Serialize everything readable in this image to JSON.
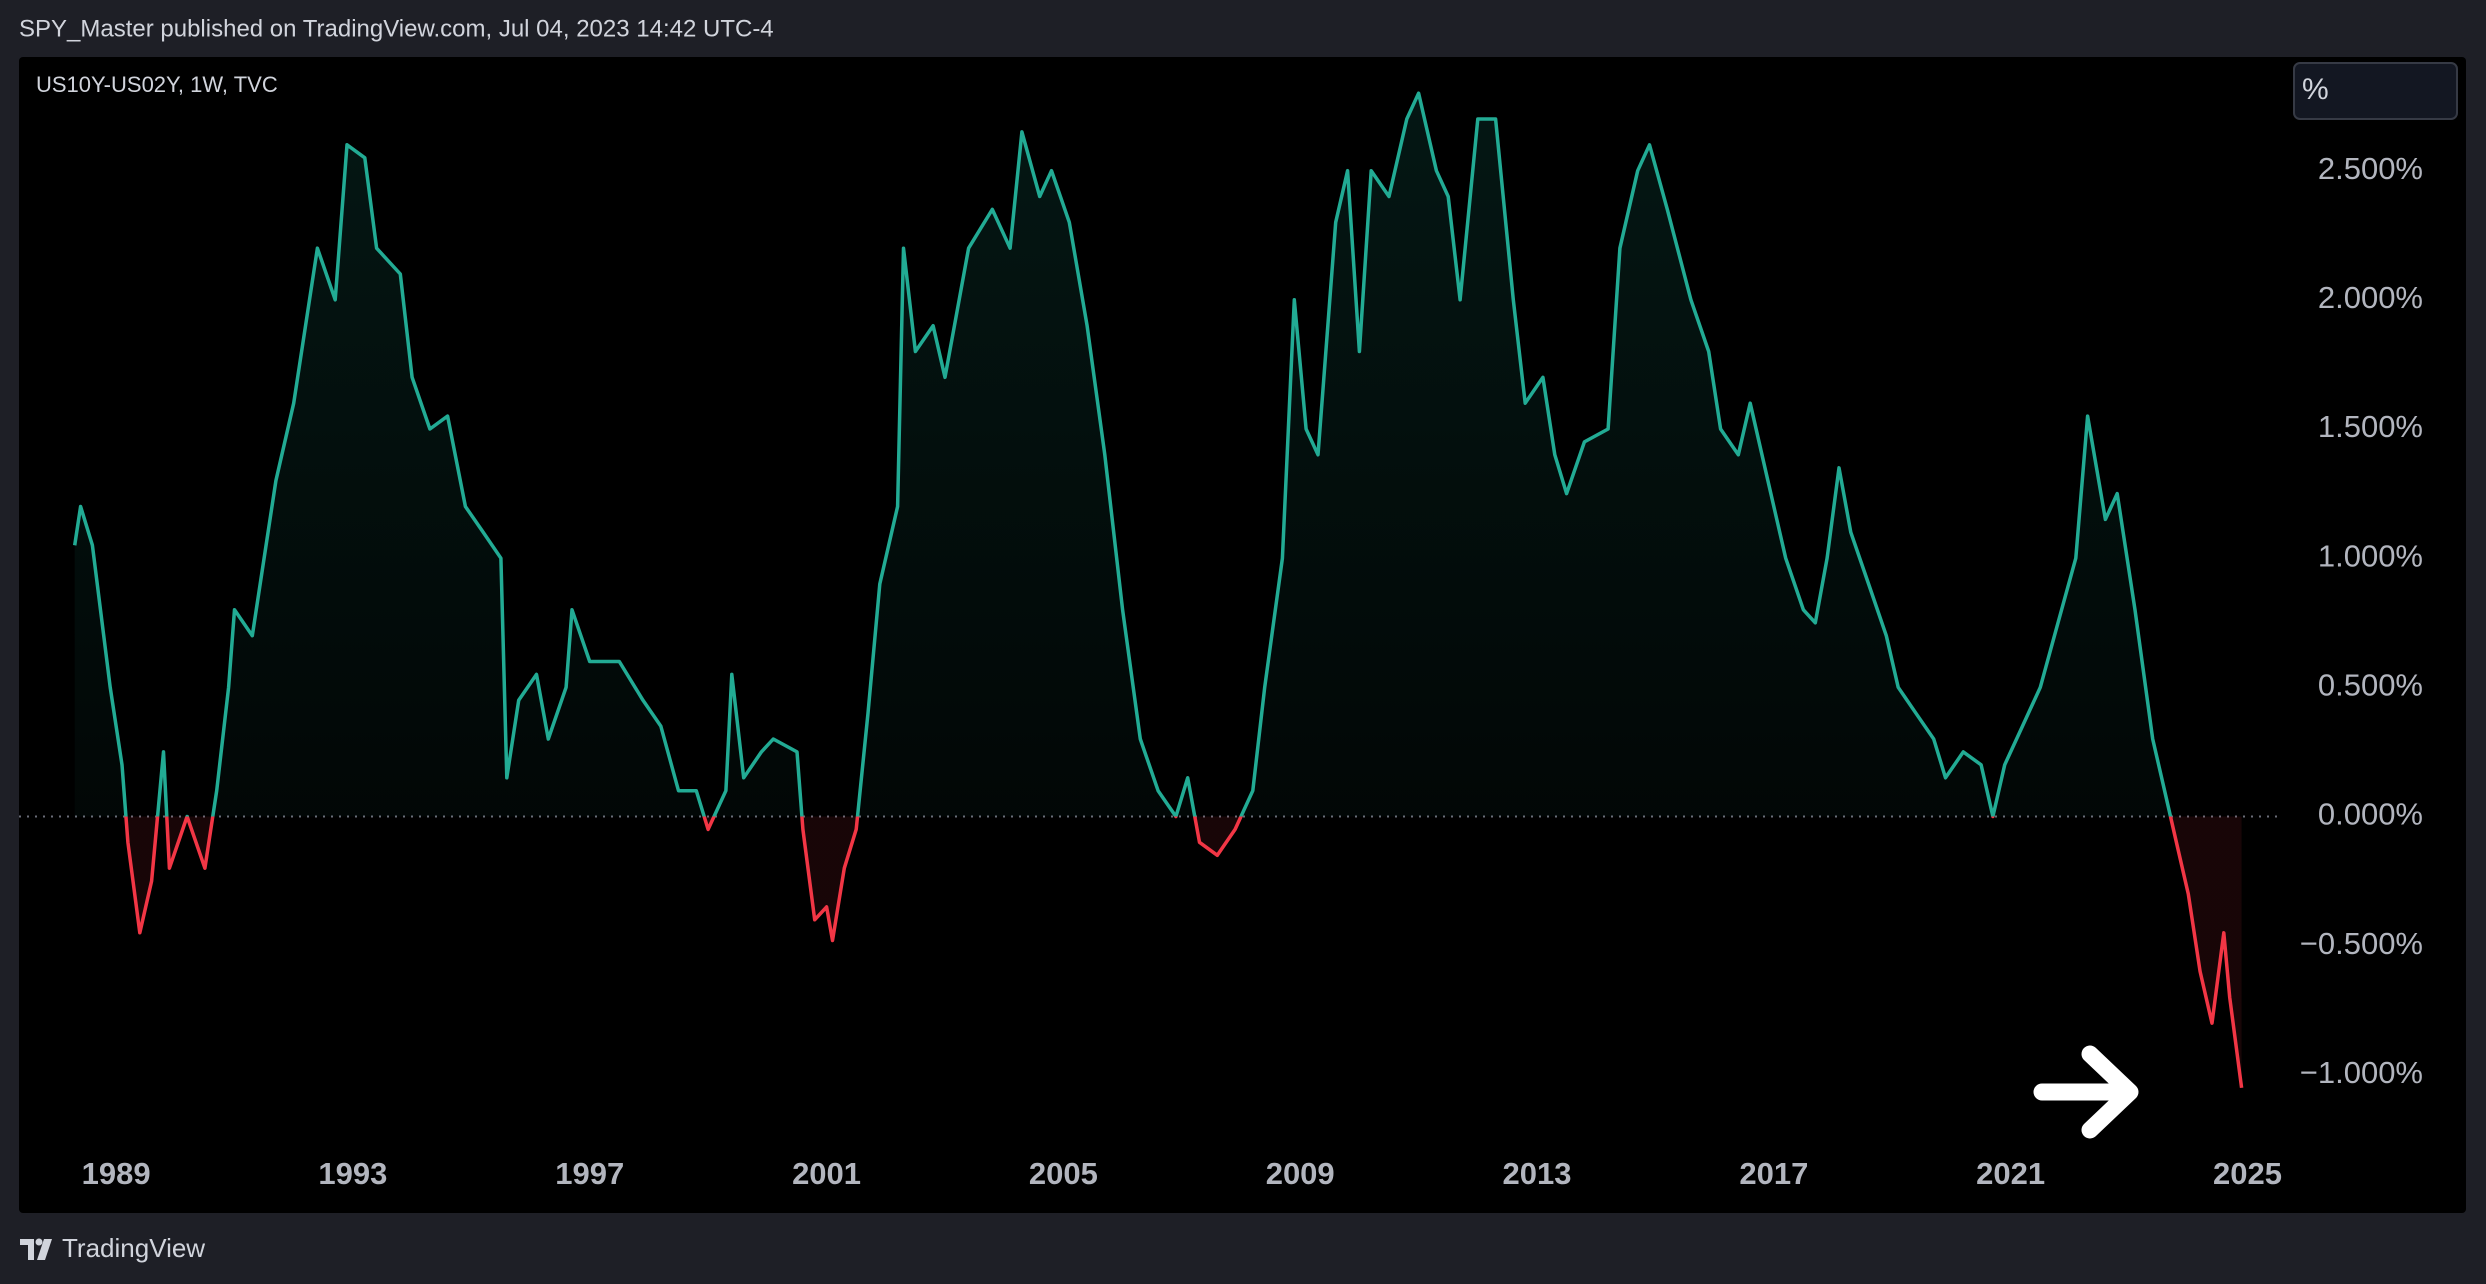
{
  "header": "SPY_Master published on TradingView.com, Jul 04, 2023 14:42 UTC-4",
  "footer": "TradingView",
  "scale_button": "%",
  "chart_data": {
    "type": "line",
    "title": "US10Y-US02Y, 1W, TVC",
    "color": "#22ab94",
    "negative_color": "#f23645",
    "baseline": 0,
    "grid": false,
    "xlim": [
      1987.36,
      2025.6
    ],
    "xticks": [
      1989,
      1993,
      1997,
      2001,
      2005,
      2009,
      2013,
      2017,
      2021,
      2025
    ],
    "ylim": [
      -1.26,
      2.94
    ],
    "yticks": [
      {
        "value": -1,
        "label": "−1.000%"
      },
      {
        "value": -0.5,
        "label": "−0.500%"
      },
      {
        "value": 0,
        "label": "0.000%"
      },
      {
        "value": 0.5,
        "label": "0.500%"
      },
      {
        "value": 1,
        "label": "1.000%"
      },
      {
        "value": 1.5,
        "label": "1.500%"
      },
      {
        "value": 2,
        "label": "2.000%"
      },
      {
        "value": 2.5,
        "label": "2.500%"
      }
    ],
    "x": [
      1988.3,
      1988.4,
      1988.6,
      1988.9,
      1989.1,
      1989.2,
      1989.4,
      1989.6,
      1989.8,
      1989.9,
      1990.2,
      1990.5,
      1990.7,
      1990.9,
      1991.0,
      1991.3,
      1991.7,
      1992.0,
      1992.4,
      1992.7,
      1992.9,
      1993.2,
      1993.4,
      1993.8,
      1994.0,
      1994.3,
      1994.6,
      1994.9,
      1995.2,
      1995.5,
      1995.6,
      1995.8,
      1996.1,
      1996.3,
      1996.6,
      1996.7,
      1997.0,
      1997.5,
      1997.9,
      1998.2,
      1998.5,
      1998.8,
      1999.0,
      1999.3,
      1999.4,
      1999.6,
      1999.9,
      2000.1,
      2000.5,
      2000.6,
      2000.8,
      2001.0,
      2001.1,
      2001.3,
      2001.5,
      2001.7,
      2001.9,
      2002.2,
      2002.3,
      2002.5,
      2002.8,
      2003.0,
      2003.4,
      2003.8,
      2004.1,
      2004.3,
      2004.6,
      2004.8,
      2005.1,
      2005.4,
      2005.7,
      2006.0,
      2006.3,
      2006.6,
      2006.9,
      2007.1,
      2007.3,
      2007.6,
      2007.9,
      2008.2,
      2008.4,
      2008.7,
      2008.9,
      2009.1,
      2009.3,
      2009.6,
      2009.8,
      2010.0,
      2010.2,
      2010.5,
      2010.8,
      2011.0,
      2011.3,
      2011.5,
      2011.7,
      2012.0,
      2012.3,
      2012.6,
      2012.8,
      2013.1,
      2013.3,
      2013.5,
      2013.8,
      2014.2,
      2014.4,
      2014.7,
      2014.9,
      2015.2,
      2015.6,
      2015.9,
      2016.1,
      2016.4,
      2016.6,
      2016.9,
      2017.2,
      2017.5,
      2017.7,
      2017.9,
      2018.1,
      2018.3,
      2018.6,
      2018.9,
      2019.1,
      2019.4,
      2019.7,
      2019.9,
      2020.2,
      2020.5,
      2020.7,
      2020.9,
      2021.2,
      2021.5,
      2021.8,
      2022.1,
      2022.3,
      2022.6,
      2022.8,
      2023.1,
      2023.4,
      2023.6,
      2023.8,
      2024.0,
      2024.2,
      2024.4,
      2024.6,
      2024.7,
      2024.9
    ],
    "values": [
      1.05,
      1.2,
      1.05,
      0.5,
      0.2,
      -0.1,
      -0.45,
      -0.25,
      0.25,
      -0.2,
      0.0,
      -0.2,
      0.1,
      0.5,
      0.8,
      0.7,
      1.3,
      1.6,
      2.2,
      2.0,
      2.6,
      2.55,
      2.2,
      2.1,
      1.7,
      1.5,
      1.55,
      1.2,
      1.1,
      1.0,
      0.15,
      0.45,
      0.55,
      0.3,
      0.5,
      0.8,
      0.6,
      0.6,
      0.45,
      0.35,
      0.1,
      0.1,
      -0.05,
      0.1,
      0.55,
      0.15,
      0.25,
      0.3,
      0.25,
      -0.05,
      -0.4,
      -0.35,
      -0.48,
      -0.2,
      -0.05,
      0.4,
      0.9,
      1.2,
      2.2,
      1.8,
      1.9,
      1.7,
      2.2,
      2.35,
      2.2,
      2.65,
      2.4,
      2.5,
      2.3,
      1.9,
      1.4,
      0.8,
      0.3,
      0.1,
      0.0,
      0.15,
      -0.1,
      -0.15,
      -0.05,
      0.1,
      0.5,
      1.0,
      2.0,
      1.5,
      1.4,
      2.3,
      2.5,
      1.8,
      2.5,
      2.4,
      2.7,
      2.8,
      2.5,
      2.4,
      2.0,
      2.7,
      2.7,
      2.0,
      1.6,
      1.7,
      1.4,
      1.25,
      1.45,
      1.5,
      2.2,
      2.5,
      2.6,
      2.35,
      2.0,
      1.8,
      1.5,
      1.4,
      1.6,
      1.3,
      1.0,
      0.8,
      0.75,
      1.0,
      1.35,
      1.1,
      0.9,
      0.7,
      0.5,
      0.4,
      0.3,
      0.15,
      0.25,
      0.2,
      0.0,
      0.2,
      0.35,
      0.5,
      0.75,
      1.0,
      1.55,
      1.15,
      1.25,
      0.8,
      0.3,
      0.1,
      -0.1,
      -0.3,
      -0.6,
      -0.8,
      -0.45,
      -0.7,
      -1.05
    ]
  }
}
